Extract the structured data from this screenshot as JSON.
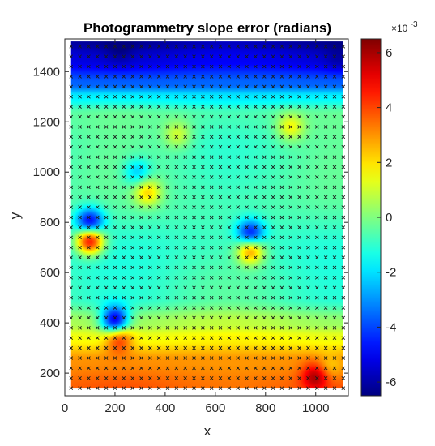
{
  "chart_data": {
    "type": "heatmap",
    "title": "Photogrammetry slope error (radians)",
    "xlabel": "x",
    "ylabel": "y",
    "xlim": [
      0,
      1130
    ],
    "ylim": [
      110,
      1530
    ],
    "x_ticks": [
      "0",
      "200",
      "400",
      "600",
      "800",
      "1000"
    ],
    "y_ticks": [
      "200",
      "400",
      "600",
      "800",
      "1000",
      "1200",
      "1400"
    ],
    "x_tick_values": [
      0,
      200,
      400,
      600,
      800,
      1000
    ],
    "y_tick_values": [
      200,
      400,
      600,
      800,
      1000,
      1200,
      1400
    ],
    "colorbar": {
      "range": [
        -6.5,
        6.5
      ],
      "ticks": [
        "-6",
        "-4",
        "-2",
        "0",
        "2",
        "4",
        "6"
      ],
      "tick_values": [
        -6,
        -4,
        -2,
        0,
        2,
        4,
        6
      ],
      "multiplier_base": "×10",
      "multiplier_exp": "-3",
      "colormap": "jet"
    },
    "data_extent": {
      "x": [
        25,
        1110
      ],
      "y": [
        140,
        1520
      ]
    },
    "field_description_units": "slope error in units of 1e-3 radians",
    "field": {
      "base_profile_by_y": [
        {
          "y": 140,
          "v": 3.6
        },
        {
          "y": 250,
          "v": 3.0
        },
        {
          "y": 340,
          "v": 1.6
        },
        {
          "y": 400,
          "v": 0.6
        },
        {
          "y": 500,
          "v": -0.8
        },
        {
          "y": 700,
          "v": -1.0
        },
        {
          "y": 900,
          "v": -0.6
        },
        {
          "y": 1100,
          "v": -0.7
        },
        {
          "y": 1230,
          "v": -0.5
        },
        {
          "y": 1300,
          "v": -1.8
        },
        {
          "y": 1350,
          "v": -3.6
        },
        {
          "y": 1450,
          "v": -5.2
        },
        {
          "y": 1520,
          "v": -6.0
        }
      ],
      "features": [
        {
          "x": 100,
          "y": 800,
          "v": -5.5
        },
        {
          "x": 100,
          "y": 730,
          "v": 5.2
        },
        {
          "x": 740,
          "y": 755,
          "v": -5.0
        },
        {
          "x": 740,
          "y": 690,
          "v": 3.0
        },
        {
          "x": 290,
          "y": 1000,
          "v": -2.5
        },
        {
          "x": 330,
          "y": 920,
          "v": 2.0
        },
        {
          "x": 200,
          "y": 410,
          "v": -5.0
        },
        {
          "x": 215,
          "y": 340,
          "v": 4.5
        },
        {
          "x": 1000,
          "y": 190,
          "v": 6.0
        },
        {
          "x": 1050,
          "y": 220,
          "v": 2.0
        },
        {
          "x": 220,
          "y": 1480,
          "v": -6.2
        },
        {
          "x": 1090,
          "y": 1450,
          "v": -5.8
        },
        {
          "x": 900,
          "y": 1180,
          "v": 1.5
        },
        {
          "x": 450,
          "y": 1150,
          "v": 1.0
        }
      ]
    },
    "markers": {
      "symbol": "×",
      "x_start": 25,
      "x_step": 35,
      "x_end": 1110,
      "y_start": 140,
      "y_step": 40,
      "y_end": 1520
    }
  }
}
